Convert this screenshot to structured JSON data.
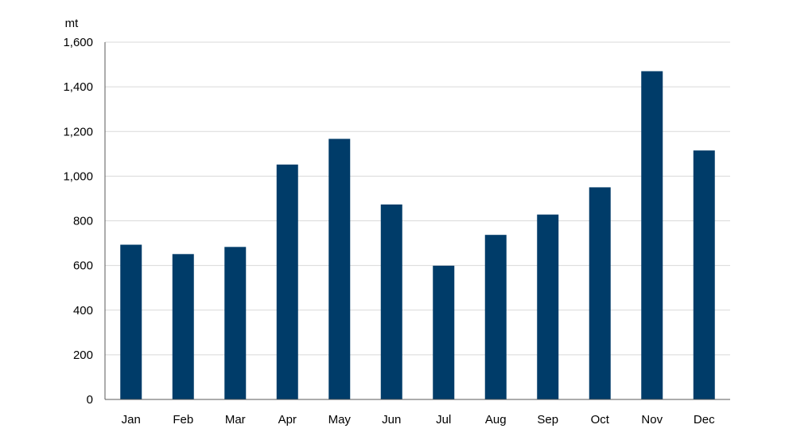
{
  "chart_data": {
    "type": "bar",
    "title": "",
    "ylabel": "mt",
    "xlabel": "",
    "categories": [
      "Jan",
      "Feb",
      "Mar",
      "Apr",
      "May",
      "Jun",
      "Jul",
      "Aug",
      "Sep",
      "Oct",
      "Nov",
      "Dec"
    ],
    "values": [
      693,
      651,
      683,
      1052,
      1167,
      873,
      599,
      737,
      828,
      950,
      1470,
      1115
    ],
    "ylim": [
      0,
      1600
    ],
    "yticks": [
      0,
      200,
      400,
      600,
      800,
      1000,
      1200,
      1400,
      1600
    ],
    "ytick_labels": [
      "0",
      "200",
      "400",
      "600",
      "800",
      "1,000",
      "1,200",
      "1,400",
      "1,600"
    ],
    "grid": true,
    "legend": "none",
    "colors": {
      "bar": "#003c69",
      "grid": "#d9d9d9",
      "axis": "#595959"
    }
  }
}
